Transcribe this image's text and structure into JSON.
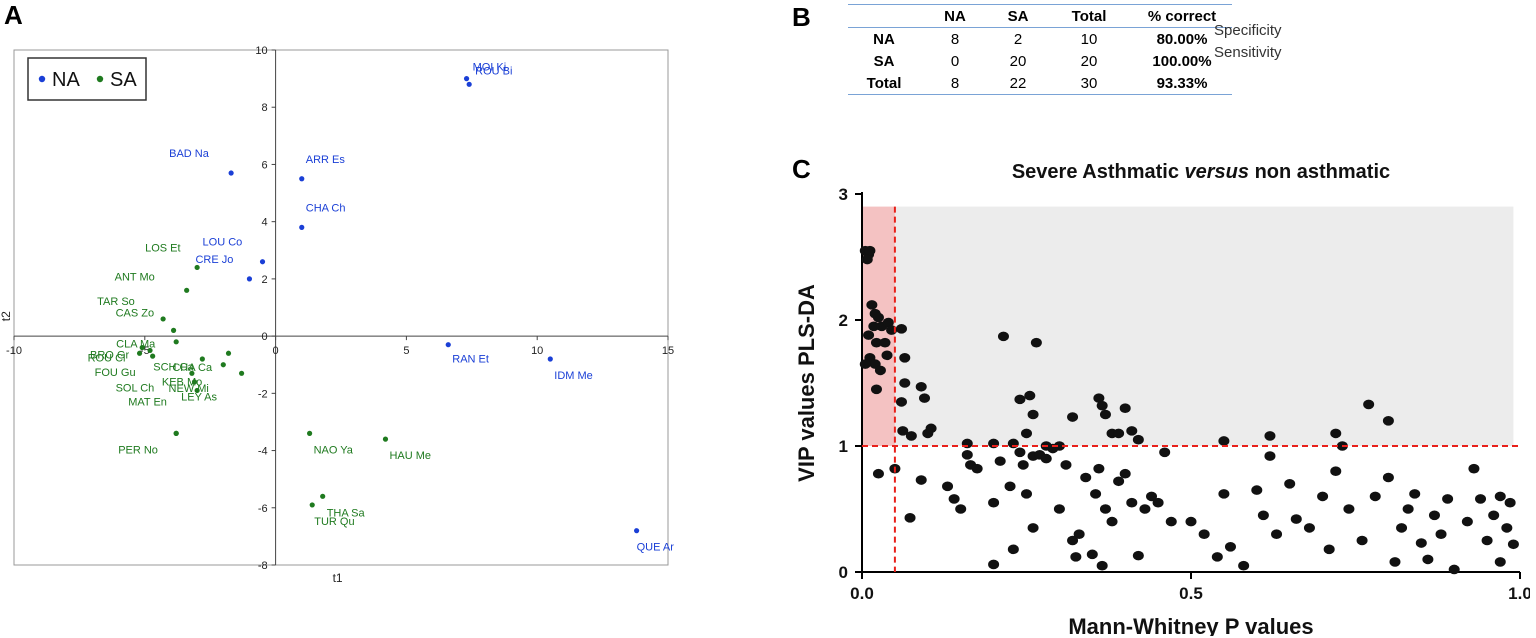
{
  "panels": {
    "a": "A",
    "b": "B",
    "c": "C"
  },
  "colors": {
    "na": "#1a3fd6",
    "sa": "#1f7a1f",
    "dark": "#000000",
    "red": "#e8201a",
    "pink": "#f4c2c2",
    "gray": "#ececec"
  },
  "chart_data": [
    {
      "type": "scatter",
      "title": "",
      "xlabel": "t1",
      "ylabel": "t2",
      "xlim": [
        -10,
        15
      ],
      "ylim": [
        -8,
        10
      ],
      "xticks": [
        -10,
        -5,
        0,
        5,
        10,
        15
      ],
      "yticks": [
        -8,
        -6,
        -4,
        -2,
        0,
        2,
        4,
        6,
        8,
        10
      ],
      "xtick_labels": [
        "-10",
        "-5",
        "0",
        "5",
        "10",
        "15"
      ],
      "ytick_labels": [
        "-8",
        "-6",
        "-4",
        "-2",
        "0",
        "2",
        "4",
        "6",
        "8",
        "10"
      ],
      "legend": {
        "position": "top-left",
        "entries": [
          {
            "name": "NA",
            "symbol": "•"
          },
          {
            "name": "SA",
            "symbol": "•"
          }
        ]
      },
      "series": [
        {
          "name": "NA",
          "points": [
            {
              "x": 7.3,
              "y": 9.0,
              "label": "MOI Ki"
            },
            {
              "x": 7.4,
              "y": 8.8,
              "label": "ROU Bi"
            },
            {
              "x": -1.7,
              "y": 5.7,
              "label": "BAD Na"
            },
            {
              "x": 1.0,
              "y": 5.5,
              "label": "ARR Es"
            },
            {
              "x": 1.0,
              "y": 3.8,
              "label": "CHA Ch"
            },
            {
              "x": -0.5,
              "y": 2.6,
              "label": "LOU Co"
            },
            {
              "x": -1.0,
              "y": 2.0,
              "label": "CRE Jo"
            },
            {
              "x": 6.6,
              "y": -0.3,
              "label": "RAN Et"
            },
            {
              "x": 10.5,
              "y": -0.8,
              "label": "IDM Me"
            },
            {
              "x": 13.8,
              "y": -6.8,
              "label": "QUE Ar"
            }
          ]
        },
        {
          "name": "SA",
          "points": [
            {
              "x": -3.0,
              "y": 2.4,
              "label": "LOS Et"
            },
            {
              "x": -3.4,
              "y": 1.6,
              "label": "ANT Mo"
            },
            {
              "x": -4.3,
              "y": 0.6,
              "label": "TAR So"
            },
            {
              "x": -3.9,
              "y": 0.2,
              "label": "CAS Zo"
            },
            {
              "x": -3.8,
              "y": -0.2,
              "label": ""
            },
            {
              "x": -5.1,
              "y": -0.4,
              "label": "CLA Ma"
            },
            {
              "x": -4.8,
              "y": -0.5,
              "label": "BRO Gr"
            },
            {
              "x": -5.2,
              "y": -0.6,
              "label": "ROU Cl"
            },
            {
              "x": -4.7,
              "y": -0.7,
              "label": "FOU Gu"
            },
            {
              "x": -2.8,
              "y": -0.8,
              "label": "CHA Ca"
            },
            {
              "x": -1.8,
              "y": -0.6,
              "label": ""
            },
            {
              "x": -2.0,
              "y": -1.0,
              "label": "SCH Ca"
            },
            {
              "x": -1.3,
              "y": -1.3,
              "label": "SOL Ch"
            },
            {
              "x": -3.2,
              "y": -1.3,
              "label": "KEB Mo"
            },
            {
              "x": -3.1,
              "y": -1.6,
              "label": "NEW Mi"
            },
            {
              "x": -3.0,
              "y": -1.9,
              "label": "LEY As"
            },
            {
              "x": -3.8,
              "y": -3.4,
              "label": "MAT En"
            },
            {
              "x": -3.8,
              "y": -3.4,
              "label": "PER No"
            },
            {
              "x": 1.3,
              "y": -3.4,
              "label": "NAO Ya"
            },
            {
              "x": 4.2,
              "y": -3.6,
              "label": "HAU Me"
            },
            {
              "x": 1.8,
              "y": -5.6,
              "label": "THA Sa"
            },
            {
              "x": 1.4,
              "y": -5.9,
              "label": "TUR Qu"
            }
          ]
        }
      ]
    },
    {
      "type": "table",
      "title": "",
      "columns": [
        "",
        "NA",
        "SA",
        "Total",
        "% correct"
      ],
      "rows": [
        {
          "label": "NA",
          "na": "8",
          "sa": "2",
          "total": "10",
          "pct": "80.00%",
          "note": "Specificity"
        },
        {
          "label": "SA",
          "na": "0",
          "sa": "20",
          "total": "20",
          "pct": "100.00%",
          "note": "Sensitivity"
        },
        {
          "label": "Total",
          "na": "8",
          "sa": "22",
          "total": "30",
          "pct": "93.33%",
          "note": ""
        }
      ]
    },
    {
      "type": "scatter",
      "title_parts": [
        "Severe Asthmatic ",
        "versus",
        " non asthmatic"
      ],
      "xlabel": "Mann-Whitney P values",
      "ylabel": "VIP values PLS-DA",
      "xlim": [
        0,
        1.0
      ],
      "ylim": [
        0,
        3
      ],
      "xticks": [
        0.0,
        0.5,
        1.0
      ],
      "yticks": [
        0,
        1,
        2,
        3
      ],
      "xtick_labels": [
        "0.0",
        "0.5",
        "1.0"
      ],
      "ytick_labels": [
        "0",
        "1",
        "2",
        "3"
      ],
      "thresholds": {
        "x": 0.05,
        "y": 1.0
      },
      "shaded_regions": [
        {
          "name": "significant",
          "x": [
            0,
            0.05
          ],
          "y": [
            1.0,
            2.9
          ],
          "color": "pink"
        },
        {
          "name": "vip-only",
          "x": [
            0.05,
            0.99
          ],
          "y": [
            1.0,
            2.9
          ],
          "color": "gray"
        }
      ],
      "points": [
        [
          0.005,
          2.55
        ],
        [
          0.01,
          2.52
        ],
        [
          0.012,
          2.55
        ],
        [
          0.008,
          2.48
        ],
        [
          0.015,
          2.12
        ],
        [
          0.02,
          2.05
        ],
        [
          0.025,
          2.02
        ],
        [
          0.03,
          1.95
        ],
        [
          0.018,
          1.95
        ],
        [
          0.01,
          1.88
        ],
        [
          0.022,
          1.82
        ],
        [
          0.035,
          1.82
        ],
        [
          0.04,
          1.98
        ],
        [
          0.045,
          1.92
        ],
        [
          0.012,
          1.7
        ],
        [
          0.02,
          1.65
        ],
        [
          0.028,
          1.6
        ],
        [
          0.038,
          1.72
        ],
        [
          0.005,
          1.65
        ],
        [
          0.022,
          1.45
        ],
        [
          0.06,
          1.93
        ],
        [
          0.065,
          1.7
        ],
        [
          0.065,
          1.5
        ],
        [
          0.09,
          1.47
        ],
        [
          0.095,
          1.38
        ],
        [
          0.06,
          1.35
        ],
        [
          0.062,
          1.12
        ],
        [
          0.075,
          1.08
        ],
        [
          0.1,
          1.1
        ],
        [
          0.105,
          1.14
        ],
        [
          0.16,
          1.02
        ],
        [
          0.2,
          1.02
        ],
        [
          0.215,
          1.87
        ],
        [
          0.23,
          1.02
        ],
        [
          0.24,
          1.37
        ],
        [
          0.255,
          1.4
        ],
        [
          0.265,
          1.82
        ],
        [
          0.28,
          1.0
        ],
        [
          0.26,
          1.25
        ],
        [
          0.25,
          1.1
        ],
        [
          0.3,
          1.0
        ],
        [
          0.32,
          1.23
        ],
        [
          0.36,
          1.38
        ],
        [
          0.365,
          1.32
        ],
        [
          0.37,
          1.25
        ],
        [
          0.38,
          1.1
        ],
        [
          0.39,
          1.1
        ],
        [
          0.4,
          1.3
        ],
        [
          0.41,
          1.12
        ],
        [
          0.42,
          1.05
        ],
        [
          0.55,
          1.04
        ],
        [
          0.62,
          1.08
        ],
        [
          0.72,
          1.1
        ],
        [
          0.73,
          1.0
        ],
        [
          0.77,
          1.33
        ],
        [
          0.8,
          1.2
        ],
        [
          0.025,
          0.78
        ],
        [
          0.05,
          0.82
        ],
        [
          0.073,
          0.43
        ],
        [
          0.09,
          0.73
        ],
        [
          0.13,
          0.68
        ],
        [
          0.14,
          0.58
        ],
        [
          0.15,
          0.5
        ],
        [
          0.16,
          0.93
        ],
        [
          0.165,
          0.85
        ],
        [
          0.175,
          0.82
        ],
        [
          0.2,
          0.55
        ],
        [
          0.2,
          0.06
        ],
        [
          0.21,
          0.88
        ],
        [
          0.225,
          0.68
        ],
        [
          0.23,
          0.18
        ],
        [
          0.24,
          0.95
        ],
        [
          0.245,
          0.85
        ],
        [
          0.25,
          0.62
        ],
        [
          0.26,
          0.92
        ],
        [
          0.26,
          0.35
        ],
        [
          0.27,
          0.93
        ],
        [
          0.28,
          0.9
        ],
        [
          0.29,
          0.98
        ],
        [
          0.3,
          0.5
        ],
        [
          0.31,
          0.85
        ],
        [
          0.32,
          0.25
        ],
        [
          0.325,
          0.12
        ],
        [
          0.33,
          0.3
        ],
        [
          0.34,
          0.75
        ],
        [
          0.35,
          0.14
        ],
        [
          0.355,
          0.62
        ],
        [
          0.36,
          0.82
        ],
        [
          0.365,
          0.05
        ],
        [
          0.37,
          0.5
        ],
        [
          0.38,
          0.4
        ],
        [
          0.39,
          0.72
        ],
        [
          0.4,
          0.78
        ],
        [
          0.41,
          0.55
        ],
        [
          0.42,
          0.13
        ],
        [
          0.43,
          0.5
        ],
        [
          0.44,
          0.6
        ],
        [
          0.45,
          0.55
        ],
        [
          0.46,
          0.95
        ],
        [
          0.47,
          0.4
        ],
        [
          0.5,
          0.4
        ],
        [
          0.52,
          0.3
        ],
        [
          0.54,
          0.12
        ],
        [
          0.55,
          0.62
        ],
        [
          0.56,
          0.2
        ],
        [
          0.58,
          0.05
        ],
        [
          0.6,
          0.65
        ],
        [
          0.61,
          0.45
        ],
        [
          0.62,
          0.92
        ],
        [
          0.63,
          0.3
        ],
        [
          0.65,
          0.7
        ],
        [
          0.66,
          0.42
        ],
        [
          0.68,
          0.35
        ],
        [
          0.7,
          0.6
        ],
        [
          0.71,
          0.18
        ],
        [
          0.72,
          0.8
        ],
        [
          0.74,
          0.5
        ],
        [
          0.76,
          0.25
        ],
        [
          0.78,
          0.6
        ],
        [
          0.8,
          0.75
        ],
        [
          0.81,
          0.08
        ],
        [
          0.82,
          0.35
        ],
        [
          0.83,
          0.5
        ],
        [
          0.84,
          0.62
        ],
        [
          0.85,
          0.23
        ],
        [
          0.86,
          0.1
        ],
        [
          0.87,
          0.45
        ],
        [
          0.88,
          0.3
        ],
        [
          0.89,
          0.58
        ],
        [
          0.9,
          0.02
        ],
        [
          0.92,
          0.4
        ],
        [
          0.93,
          0.82
        ],
        [
          0.94,
          0.58
        ],
        [
          0.95,
          0.25
        ],
        [
          0.96,
          0.45
        ],
        [
          0.97,
          0.08
        ],
        [
          0.98,
          0.35
        ],
        [
          0.985,
          0.55
        ],
        [
          0.99,
          0.22
        ],
        [
          0.97,
          0.6
        ]
      ]
    }
  ]
}
